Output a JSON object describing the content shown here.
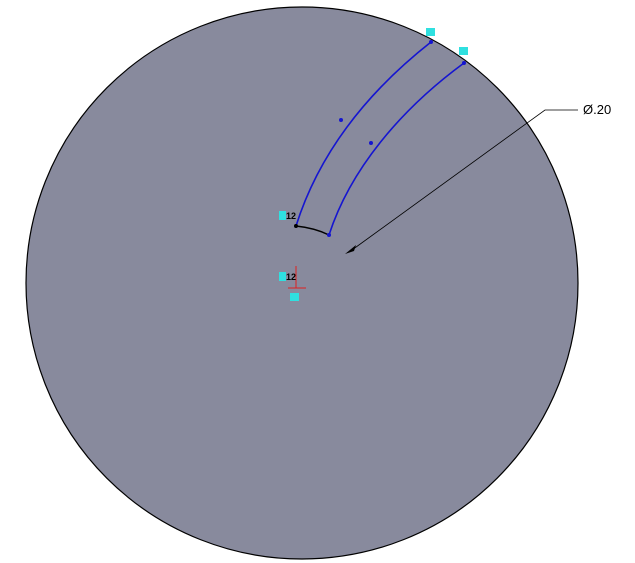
{
  "dimension": {
    "label": "Ø.20"
  },
  "relations": [
    {
      "label": "12"
    },
    {
      "label": "12"
    }
  ]
}
